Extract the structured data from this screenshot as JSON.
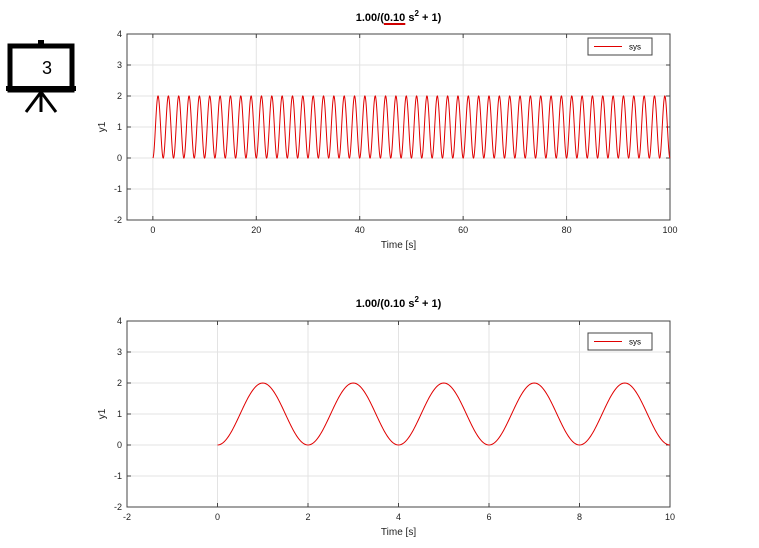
{
  "slide_badge": {
    "icon": "presentation-board-icon",
    "number": "3"
  },
  "chart_data": [
    {
      "type": "line",
      "title_prefix": "1.00/(",
      "title_highlight": "0.10",
      "title_var": " s",
      "title_exp": "2",
      "title_suffix": " + 1)",
      "highlight_color": "#d00000",
      "xlabel": "Time [s]",
      "ylabel": "y1",
      "xlim": [
        -5,
        100
      ],
      "ylim": [
        -2,
        4
      ],
      "xticks": [
        0,
        20,
        40,
        60,
        80,
        100
      ],
      "xtick_labels": [
        "0",
        "20",
        "40",
        "60",
        "80",
        "100"
      ],
      "yticks": [
        -2,
        -1,
        0,
        1,
        2,
        3,
        4
      ],
      "ytick_labels": [
        "-2",
        "-1",
        "0",
        "1",
        "2",
        "3",
        "4"
      ],
      "grid": true,
      "legend_position": "top-right",
      "series": [
        {
          "name": "sys",
          "color": "#e00000",
          "function": "1 - cos(pi * t)",
          "t_start": 0,
          "t_end": 100,
          "period": 2,
          "min": 0,
          "max": 2
        }
      ]
    },
    {
      "type": "line",
      "title_prefix": "1.00/(",
      "title_highlight": "",
      "title_var": "0.10 s",
      "title_exp": "2",
      "title_suffix": " + 1)",
      "highlight_color": "",
      "xlabel": "Time [s]",
      "ylabel": "y1",
      "xlim": [
        -2,
        10
      ],
      "ylim": [
        -2,
        4
      ],
      "xticks": [
        -2,
        0,
        2,
        4,
        6,
        8,
        10
      ],
      "xtick_labels": [
        "-2",
        "0",
        "2",
        "4",
        "6",
        "8",
        "10"
      ],
      "yticks": [
        -2,
        -1,
        0,
        1,
        2,
        3,
        4
      ],
      "ytick_labels": [
        "-2",
        "-1",
        "0",
        "1",
        "2",
        "3",
        "4"
      ],
      "grid": true,
      "legend_position": "top-right",
      "series": [
        {
          "name": "sys",
          "color": "#e00000",
          "function": "1 - cos(pi * t)",
          "t_start": 0,
          "t_end": 10,
          "period": 2,
          "min": 0,
          "max": 2
        }
      ]
    }
  ]
}
